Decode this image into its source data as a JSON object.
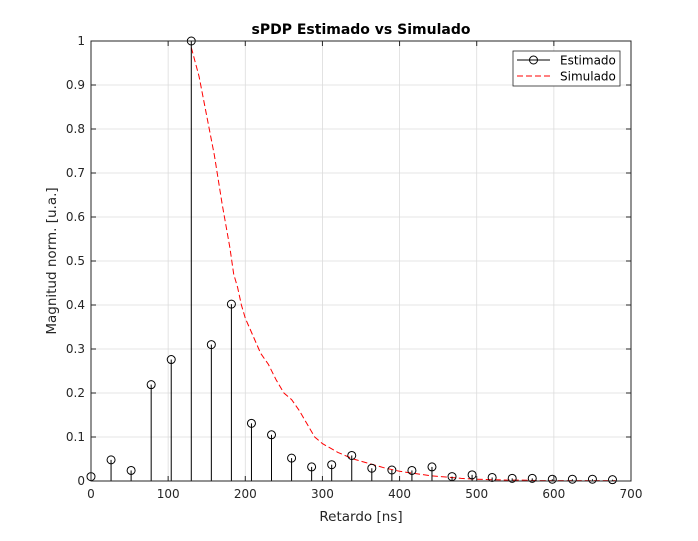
{
  "chart_data": {
    "type": "line",
    "title": "sPDP Estimado vs Simulado",
    "xlabel": "Retardo [ns]",
    "ylabel": "Magnitud norm. [u.a.]",
    "xlim": [
      0,
      700
    ],
    "ylim": [
      0,
      1
    ],
    "xticks": [
      0,
      100,
      200,
      300,
      400,
      500,
      600,
      700
    ],
    "xtick_labels": [
      "0",
      "100",
      "200",
      "300",
      "400",
      "500",
      "600",
      "700"
    ],
    "yticks": [
      0,
      0.1,
      0.2,
      0.3,
      0.4,
      0.5,
      0.6,
      0.7,
      0.8,
      0.9,
      1
    ],
    "ytick_labels": [
      "0",
      "0.1",
      "0.2",
      "0.3",
      "0.4",
      "0.5",
      "0.6",
      "0.7",
      "0.8",
      "0.9",
      "1"
    ],
    "grid": true,
    "legend_position": "top-right",
    "series": [
      {
        "name": "Estimado",
        "kind": "stem",
        "color": "#000000",
        "marker": "circle-open",
        "x": [
          0,
          26,
          52,
          78,
          104,
          130,
          156,
          182,
          208,
          234,
          260,
          286,
          312,
          338,
          364,
          390,
          416,
          442,
          468,
          494,
          520,
          546,
          572,
          598,
          624,
          650,
          676
        ],
        "y": [
          0.01,
          0.048,
          0.024,
          0.219,
          0.276,
          1.0,
          0.31,
          0.402,
          0.131,
          0.105,
          0.052,
          0.032,
          0.037,
          0.058,
          0.029,
          0.025,
          0.024,
          0.032,
          0.01,
          0.014,
          0.008,
          0.006,
          0.006,
          0.004,
          0.004,
          0.004,
          0.003
        ]
      },
      {
        "name": "Simulado",
        "kind": "line",
        "color": "#ff0000",
        "linestyle": "dashed",
        "x": [
          130,
          140,
          150,
          160,
          170,
          180,
          185,
          190,
          195,
          200,
          210,
          220,
          230,
          240,
          250,
          260,
          270,
          280,
          290,
          300,
          320,
          340,
          360,
          380,
          400,
          420,
          440,
          460,
          480,
          500,
          520,
          540,
          560,
          580,
          600,
          620,
          640,
          660,
          680
        ],
        "y": [
          0.985,
          0.92,
          0.83,
          0.74,
          0.63,
          0.53,
          0.47,
          0.44,
          0.4,
          0.37,
          0.33,
          0.29,
          0.265,
          0.23,
          0.2,
          0.185,
          0.16,
          0.13,
          0.1,
          0.085,
          0.065,
          0.05,
          0.04,
          0.03,
          0.022,
          0.017,
          0.012,
          0.009,
          0.006,
          0.004,
          0.003,
          0.002,
          0.002,
          0.001,
          0.001,
          0.001,
          0.001,
          0.001,
          0.001
        ]
      }
    ]
  }
}
